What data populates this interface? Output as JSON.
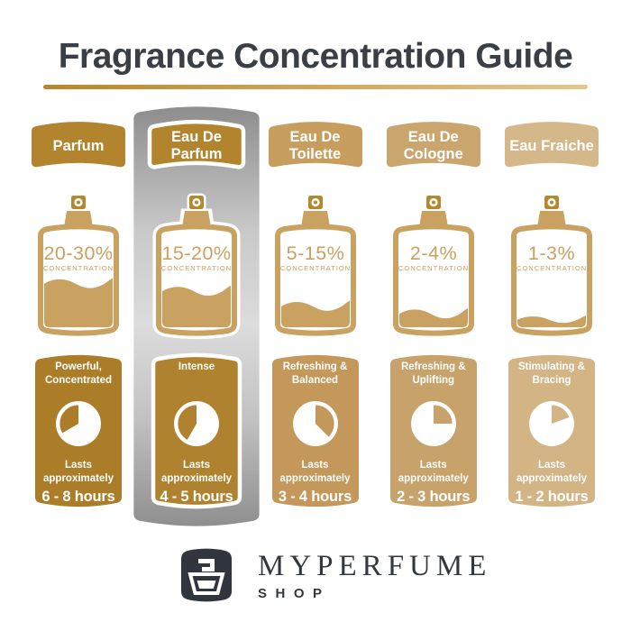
{
  "title": "Fragrance Concentration Guide",
  "theme": {
    "title_color": "#3a3e45",
    "underline_gradient": [
      "#b7882a",
      "#cfa254",
      "#e3c78f"
    ],
    "background": "#ffffff",
    "bottle_color": "#c9a262",
    "nozzle_color": "#b5872f",
    "highlight_gradient": [
      "#8d8d8d",
      "#c9c9c9",
      "#dcdcdc",
      "#c2c2c2",
      "#8f8f8f"
    ],
    "logo_bg": "#31353d",
    "brand_color": "#33373e"
  },
  "shared": {
    "concentration_word": "CONCENTRATION",
    "lasts_text": "Lasts approximately"
  },
  "columns": [
    {
      "label": "Parfum",
      "header_color": "#b2842e",
      "card_color": "#ab7d29",
      "concentration": "20-30%",
      "fill_percent": 46,
      "description": "Powerful, Concentrated",
      "duration": "6 - 8 hours",
      "pie": {
        "white_start": 0,
        "white_end": 240
      },
      "highlighted": false
    },
    {
      "label": "Eau De Parfum",
      "header_color": "#b2842e",
      "card_color": "#af8230",
      "concentration": "15-20%",
      "fill_percent": 38,
      "description": "Intense",
      "duration": "4 - 5 hours",
      "pie": {
        "white_start": 0,
        "white_end": 210
      },
      "highlighted": true
    },
    {
      "label": "Eau De Toilette",
      "header_color": "#c89e5f",
      "card_color": "#c3985a",
      "concentration": "5-15%",
      "fill_percent": 22,
      "description": "Refreshing & Balanced",
      "duration": "3 - 4 hours",
      "pie": {
        "white_start": 135,
        "white_end": 360
      },
      "highlighted": false
    },
    {
      "label": "Eau De Cologne",
      "header_color": "#cba56e",
      "card_color": "#c7a26a",
      "concentration": "2-4%",
      "fill_percent": 14,
      "description": "Refreshing & Uplifting",
      "duration": "2 - 3 hours",
      "pie": {
        "white_start": 90,
        "white_end": 360
      },
      "highlighted": false
    },
    {
      "label": "Eau Fraiche",
      "header_color": "#d5b88a",
      "card_color": "#d2b485",
      "concentration": "1-3%",
      "fill_percent": 8,
      "description": "Stimulating & Bracing",
      "duration": "1 - 2 hours",
      "pie": {
        "white_start": 70,
        "white_end": 360
      },
      "highlighted": false
    }
  ],
  "footer": {
    "brand": "MYPERFUME",
    "sub": "SHOP"
  }
}
